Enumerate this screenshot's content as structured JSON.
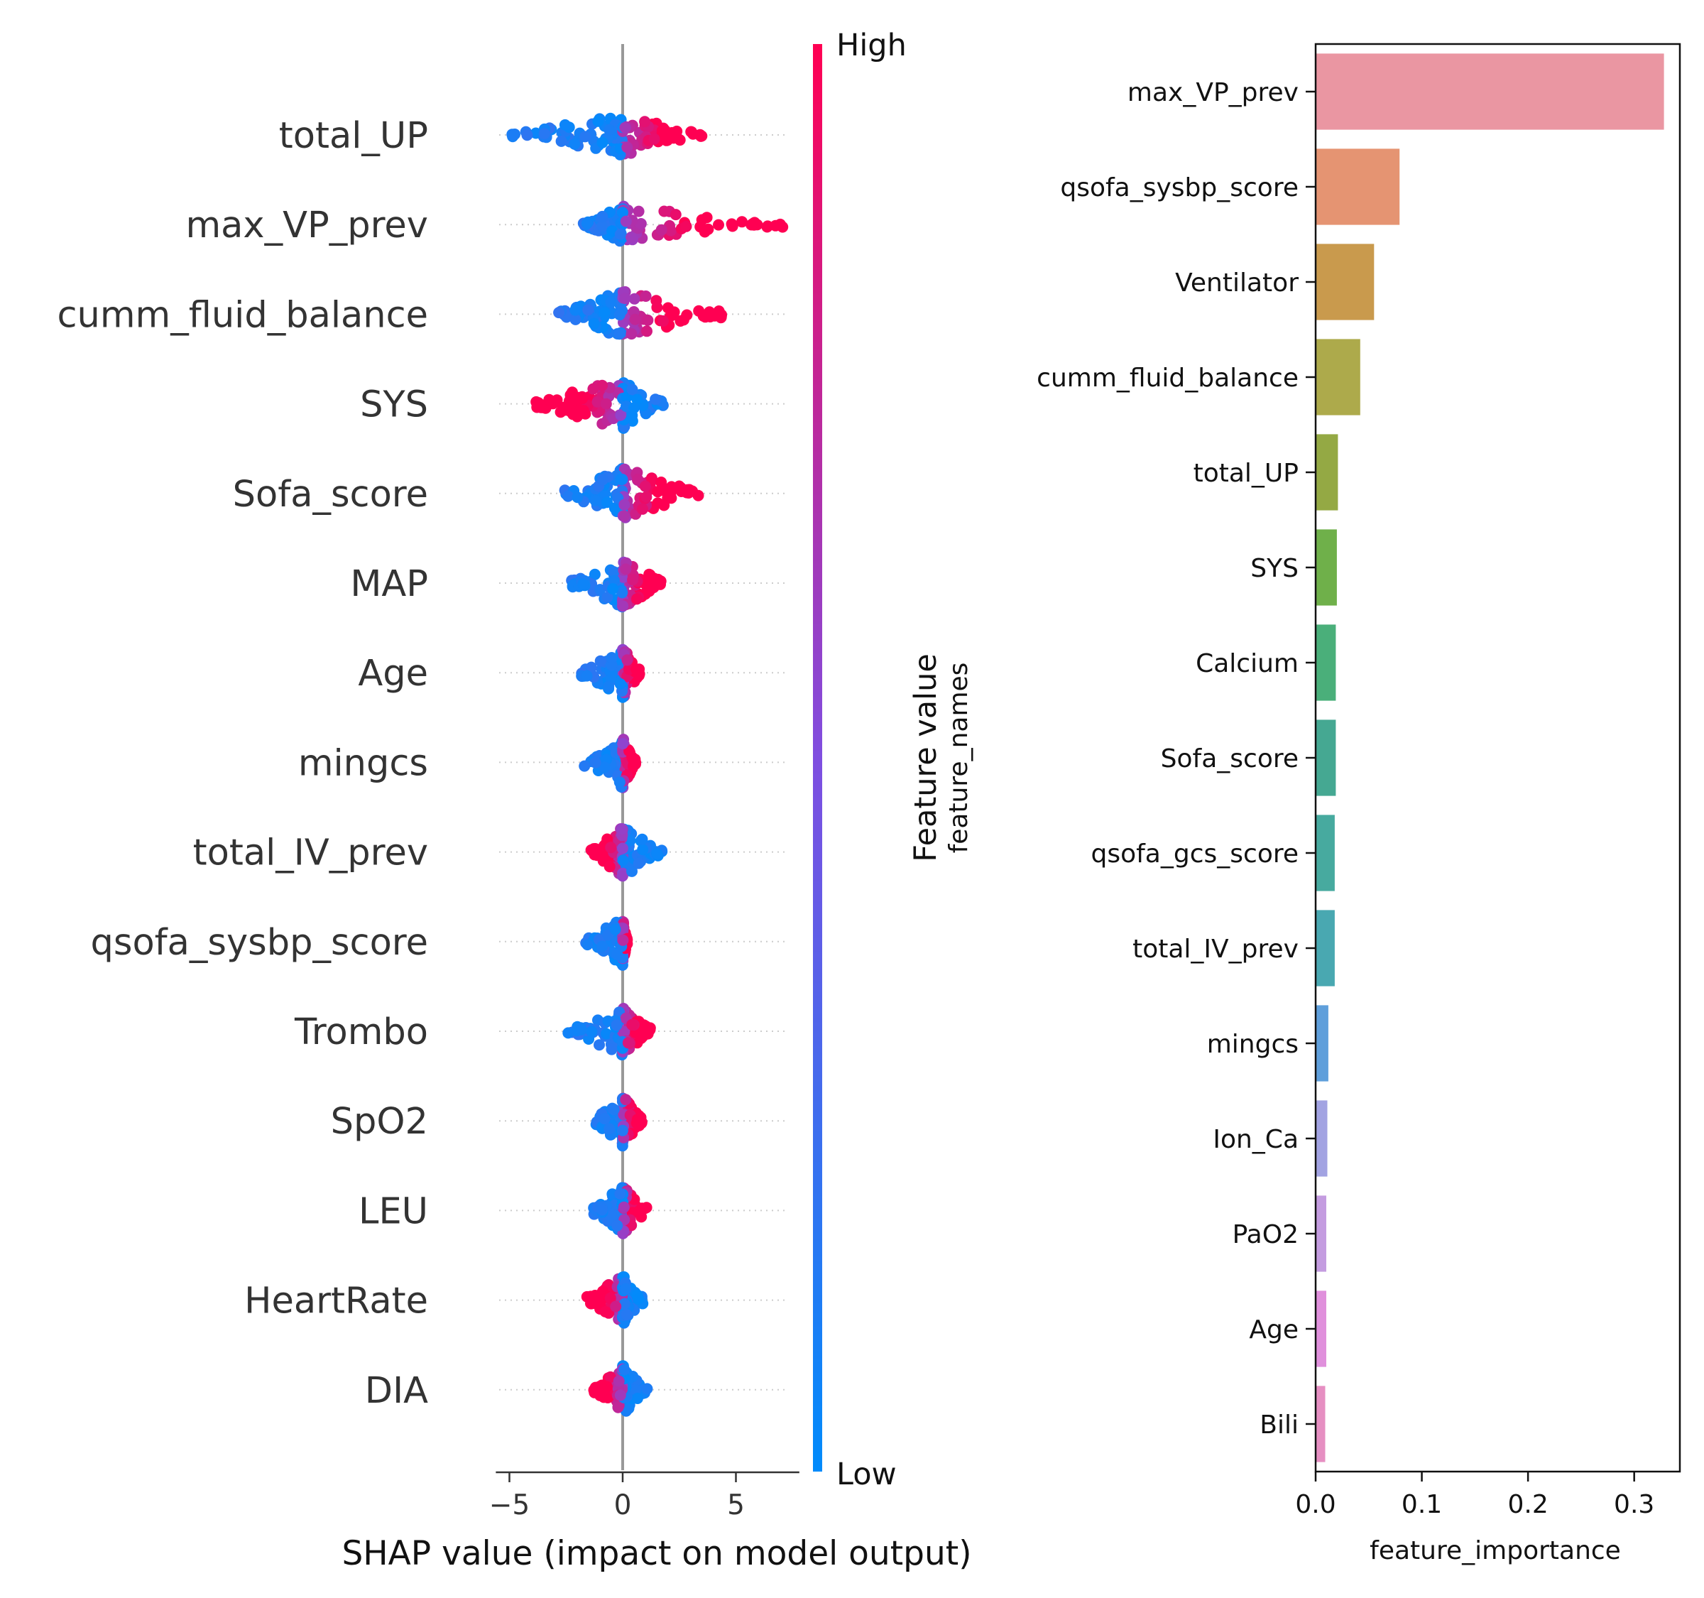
{
  "chart_data": [
    {
      "type": "scatter",
      "subtype": "shap-beeswarm",
      "xlabel": "SHAP value (impact on model output)",
      "x_ticks": [
        -5,
        0,
        5
      ],
      "xlim": [
        -5.6,
        7.8
      ],
      "colorbar": {
        "title": "Feature value",
        "subtitle": "feature_names",
        "high_label": "High",
        "low_label": "Low",
        "low_color": "#008bfb",
        "high_color": "#ff0052"
      },
      "features": [
        {
          "name": "total_UP",
          "min": -5.1,
          "max": 3.6,
          "low_side": "negative",
          "spread": 0.6
        },
        {
          "name": "max_VP_prev",
          "min": -1.8,
          "max": 7.2,
          "low_side": "negative",
          "spread": 0.55
        },
        {
          "name": "cumm_fluid_balance",
          "min": -2.9,
          "max": 4.6,
          "low_side": "negative",
          "spread": 0.7
        },
        {
          "name": "SYS",
          "min": -4.1,
          "max": 1.8,
          "low_side": "positive",
          "spread": 0.75
        },
        {
          "name": "Sofa_score",
          "min": -2.6,
          "max": 3.5,
          "low_side": "negative",
          "spread": 0.75
        },
        {
          "name": "MAP",
          "min": -2.3,
          "max": 1.8,
          "low_side": "negative",
          "spread": 0.75
        },
        {
          "name": "Age",
          "min": -1.9,
          "max": 0.8,
          "low_side": "negative",
          "spread": 0.75
        },
        {
          "name": "mingcs",
          "min": -1.7,
          "max": 0.6,
          "low_side": "negative",
          "spread": 0.75
        },
        {
          "name": "total_IV_prev",
          "min": -1.4,
          "max": 1.8,
          "low_side": "positive",
          "spread": 0.75
        },
        {
          "name": "qsofa_sysbp_score",
          "min": -1.7,
          "max": 0.2,
          "low_side": "negative",
          "spread": 0.7
        },
        {
          "name": "Trombo",
          "min": -2.5,
          "max": 1.3,
          "low_side": "negative",
          "spread": 0.7
        },
        {
          "name": "SpO2",
          "min": -1.3,
          "max": 0.9,
          "low_side": "negative",
          "spread": 0.75
        },
        {
          "name": "LEU",
          "min": -1.3,
          "max": 1.1,
          "low_side": "negative",
          "spread": 0.75
        },
        {
          "name": "HeartRate",
          "min": -1.6,
          "max": 0.9,
          "low_side": "positive",
          "spread": 0.75
        },
        {
          "name": "DIA",
          "min": -1.3,
          "max": 1.1,
          "low_side": "positive",
          "spread": 0.75
        }
      ]
    },
    {
      "type": "bar",
      "orientation": "horizontal",
      "xlabel": "feature_importance",
      "ylabel": "feature_names",
      "x_ticks": [
        0.0,
        0.1,
        0.2,
        0.3
      ],
      "tick_labels": [
        "0.0",
        "0.1",
        "0.2",
        "0.3"
      ],
      "xlim": [
        0,
        0.343
      ],
      "categories": [
        "max_VP_prev",
        "qsofa_sysbp_score",
        "Ventilator",
        "cumm_fluid_balance",
        "total_UP",
        "SYS",
        "Calcium",
        "Sofa_score",
        "qsofa_gcs_score",
        "total_IV_prev",
        "mingcs",
        "Ion_Ca",
        "PaO2",
        "Age",
        "Bili"
      ],
      "values": [
        0.328,
        0.079,
        0.055,
        0.042,
        0.021,
        0.02,
        0.019,
        0.019,
        0.018,
        0.018,
        0.012,
        0.011,
        0.01,
        0.01,
        0.009
      ],
      "colors": [
        "#ea96a2",
        "#e59472",
        "#c99a4d",
        "#adaa4b",
        "#94a944",
        "#6fb04a",
        "#4aaf7a",
        "#45a892",
        "#47aa9f",
        "#49a8b1",
        "#5f9fdb",
        "#a2a3e2",
        "#c49ce0",
        "#e090dc",
        "#e68fc2"
      ]
    }
  ]
}
